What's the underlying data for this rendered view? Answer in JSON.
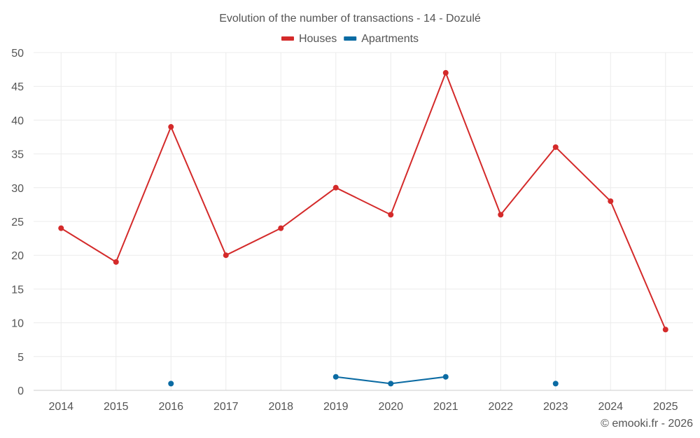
{
  "chart_data": {
    "type": "line",
    "title": "Evolution of the number of transactions - 14 - Dozulé",
    "xlabel": "",
    "ylabel": "",
    "categories": [
      "2014",
      "2015",
      "2016",
      "2017",
      "2018",
      "2019",
      "2020",
      "2021",
      "2022",
      "2023",
      "2024",
      "2025"
    ],
    "ylim": [
      0,
      50
    ],
    "yticks": [
      0,
      5,
      10,
      15,
      20,
      25,
      30,
      35,
      40,
      45,
      50
    ],
    "grid": true,
    "legend_position": "top-center",
    "series": [
      {
        "name": "Houses",
        "color": "#d42a2a",
        "values": [
          24,
          19,
          39,
          20,
          24,
          30,
          26,
          47,
          26,
          36,
          28,
          9
        ]
      },
      {
        "name": "Apartments",
        "color": "#0b6ba3",
        "values": [
          null,
          null,
          1,
          null,
          null,
          2,
          1,
          2,
          null,
          1,
          null,
          null
        ]
      }
    ]
  },
  "credit": "© emooki.fr - 2026"
}
